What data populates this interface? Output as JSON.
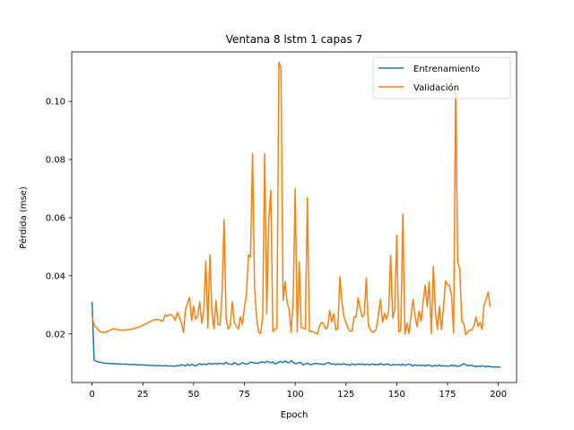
{
  "chart_data": {
    "type": "line",
    "title": "Ventana 8 lstm 1 capas 7",
    "xlabel": "Epoch",
    "ylabel": "Pérdida (mse)",
    "xlim": [
      -10,
      209
    ],
    "ylim": [
      0.0033,
      0.117
    ],
    "xticks": [
      0,
      25,
      50,
      75,
      100,
      125,
      150,
      175,
      200
    ],
    "yticks": [
      0.02,
      0.04,
      0.06,
      0.08,
      0.1
    ],
    "ytick_labels": [
      "0.02",
      "0.04",
      "0.06",
      "0.08",
      "0.10"
    ],
    "grid": false,
    "legend": "top-right",
    "series": [
      {
        "name": "Entrenamiento",
        "color": "#1f77b4",
        "values": [
          0.031,
          0.0111,
          0.0106,
          0.0104,
          0.0103,
          0.0101,
          0.01,
          0.0099,
          0.0099,
          0.0098,
          0.0098,
          0.0098,
          0.0097,
          0.0097,
          0.0096,
          0.0096,
          0.0096,
          0.0096,
          0.0095,
          0.0095,
          0.0095,
          0.0095,
          0.0094,
          0.0094,
          0.0094,
          0.0093,
          0.0093,
          0.0093,
          0.0092,
          0.0092,
          0.0092,
          0.0091,
          0.0091,
          0.0091,
          0.0091,
          0.009,
          0.0091,
          0.009,
          0.009,
          0.009,
          0.0089,
          0.009,
          0.0091,
          0.009,
          0.0095,
          0.0092,
          0.009,
          0.0096,
          0.0091,
          0.0096,
          0.0093,
          0.009,
          0.0094,
          0.0098,
          0.0094,
          0.0097,
          0.0095,
          0.0097,
          0.0099,
          0.0096,
          0.0098,
          0.0098,
          0.0097,
          0.0099,
          0.0098,
          0.0096,
          0.0103,
          0.0097,
          0.0096,
          0.0095,
          0.0101,
          0.0098,
          0.0094,
          0.0097,
          0.0101,
          0.0099,
          0.0096,
          0.0098,
          0.0103,
          0.0102,
          0.01,
          0.01,
          0.0099,
          0.0103,
          0.0104,
          0.0101,
          0.0106,
          0.0103,
          0.0101,
          0.0104,
          0.0097,
          0.0099,
          0.0104,
          0.0105,
          0.0102,
          0.0107,
          0.0103,
          0.0101,
          0.0108,
          0.0103,
          0.0098,
          0.0099,
          0.0102,
          0.0101,
          0.0093,
          0.0097,
          0.01,
          0.0095,
          0.0095,
          0.0097,
          0.0099,
          0.0098,
          0.0096,
          0.0097,
          0.0095,
          0.0098,
          0.0101,
          0.01,
          0.0096,
          0.0097,
          0.0094,
          0.0097,
          0.0095,
          0.0096,
          0.0098,
          0.0095,
          0.0095,
          0.0092,
          0.0097,
          0.0095,
          0.0094,
          0.0097,
          0.0095,
          0.0097,
          0.0093,
          0.0096,
          0.0095,
          0.0094,
          0.0097,
          0.0094,
          0.0095,
          0.0094,
          0.0098,
          0.0095,
          0.0094,
          0.0096,
          0.0096,
          0.0092,
          0.0095,
          0.0094,
          0.0094,
          0.0095,
          0.0092,
          0.0097,
          0.0092,
          0.0095,
          0.0096,
          0.0094,
          0.009,
          0.0094,
          0.0091,
          0.0093,
          0.0091,
          0.0093,
          0.009,
          0.0093,
          0.0093,
          0.009,
          0.0089,
          0.0092,
          0.009,
          0.0093,
          0.0089,
          0.0091,
          0.009,
          0.0089,
          0.009,
          0.0093,
          0.009,
          0.0092,
          0.0088,
          0.0091,
          0.0093,
          0.0098,
          0.0093,
          0.0091,
          0.0092,
          0.0092,
          0.0089,
          0.0088,
          0.009,
          0.0088,
          0.0091,
          0.0089,
          0.0087,
          0.009,
          0.0087,
          0.0087,
          0.0086,
          0.0087,
          0.0086,
          0.0086
        ]
      },
      {
        "name": "Validación",
        "color": "#ff7f0e",
        "values": [
          0.0262,
          0.023,
          0.0222,
          0.0215,
          0.0208,
          0.0205,
          0.0206,
          0.0207,
          0.021,
          0.0213,
          0.0216,
          0.0218,
          0.0216,
          0.0214,
          0.0214,
          0.0213,
          0.0214,
          0.0214,
          0.0215,
          0.0216,
          0.0217,
          0.0219,
          0.0222,
          0.0224,
          0.0227,
          0.023,
          0.0233,
          0.0237,
          0.024,
          0.0244,
          0.0247,
          0.025,
          0.025,
          0.0249,
          0.0245,
          0.0246,
          0.0266,
          0.0261,
          0.0266,
          0.0266,
          0.026,
          0.0247,
          0.0274,
          0.0257,
          0.0237,
          0.0205,
          0.0283,
          0.0305,
          0.0326,
          0.0246,
          0.0296,
          0.025,
          0.0263,
          0.031,
          0.0237,
          0.028,
          0.0451,
          0.022,
          0.0472,
          0.0276,
          0.0218,
          0.0314,
          0.0233,
          0.023,
          0.034,
          0.0593,
          0.0252,
          0.0217,
          0.0227,
          0.0311,
          0.024,
          0.0227,
          0.0217,
          0.026,
          0.0233,
          0.0291,
          0.0336,
          0.0473,
          0.0464,
          0.082,
          0.036,
          0.0257,
          0.0205,
          0.0202,
          0.026,
          0.082,
          0.027,
          0.0594,
          0.0695,
          0.0208,
          0.0217,
          0.022,
          0.1135,
          0.1114,
          0.0315,
          0.0381,
          0.0312,
          0.0284,
          0.0205,
          0.0312,
          0.0699,
          0.0207,
          0.0447,
          0.0222,
          0.022,
          0.0217,
          0.0668,
          0.0209,
          0.0209,
          0.0207,
          0.0203,
          0.02,
          0.0229,
          0.024,
          0.0234,
          0.0218,
          0.0223,
          0.0281,
          0.0242,
          0.027,
          0.0214,
          0.0219,
          0.0397,
          0.0313,
          0.0258,
          0.024,
          0.022,
          0.021,
          0.021,
          0.0258,
          0.0258,
          0.0325,
          0.0288,
          0.0258,
          0.0268,
          0.0393,
          0.023,
          0.0215,
          0.0206,
          0.0207,
          0.022,
          0.0266,
          0.032,
          0.024,
          0.0271,
          0.025,
          0.028,
          0.0471,
          0.0255,
          0.0283,
          0.0539,
          0.0207,
          0.0213,
          0.0612,
          0.0199,
          0.0238,
          0.0202,
          0.026,
          0.0319,
          0.0262,
          0.0225,
          0.0279,
          0.0244,
          0.0312,
          0.0368,
          0.0293,
          0.038,
          0.0201,
          0.0432,
          0.0281,
          0.0215,
          0.0295,
          0.0215,
          0.029,
          0.0382,
          0.037,
          0.0365,
          0.0332,
          0.0202,
          0.1055,
          0.0447,
          0.0424,
          0.0245,
          0.0237,
          0.0197,
          0.0208,
          0.0214,
          0.0213,
          0.0228,
          0.0258,
          0.0227,
          0.024,
          0.0215,
          0.0302,
          0.0317,
          0.0344,
          0.0294
        ]
      }
    ]
  }
}
